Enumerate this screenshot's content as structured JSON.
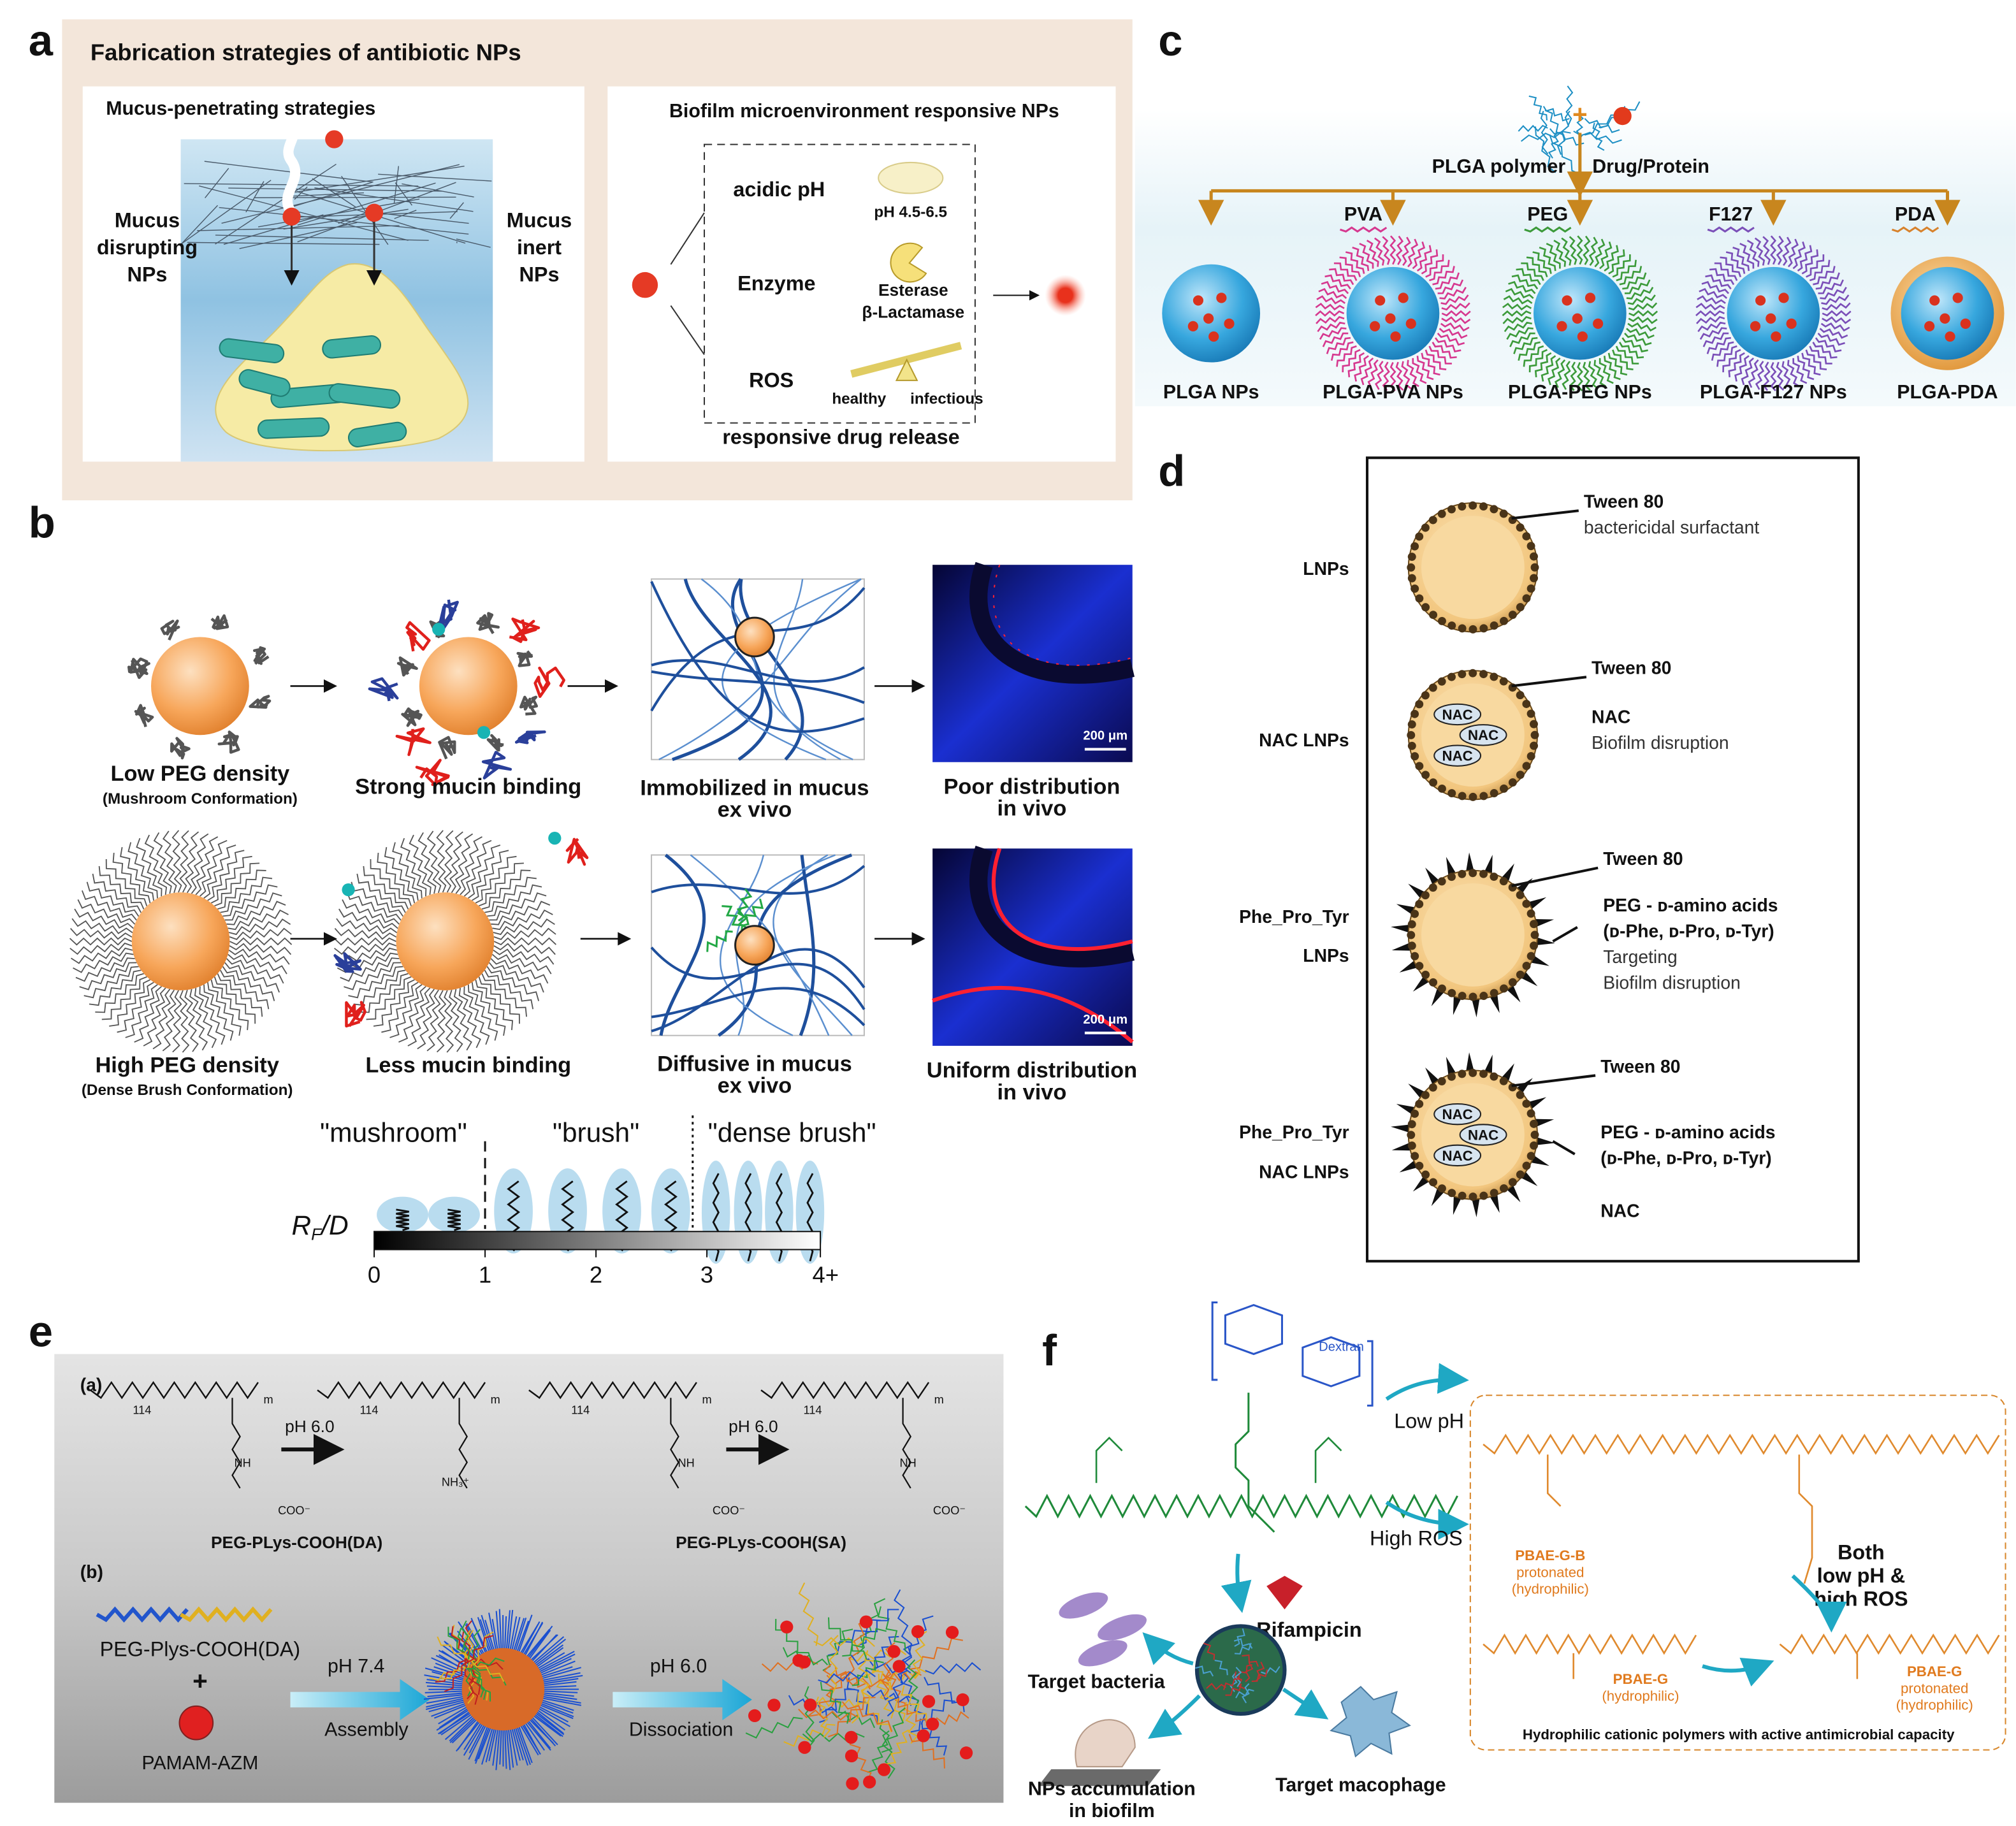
{
  "panel_a": {
    "letter": "a",
    "title": "Fabrication strategies of antibiotic NPs",
    "mucus": {
      "title": "Mucus-penetrating strategies",
      "disrupting": [
        "Mucus",
        "disrupting",
        "NPs"
      ],
      "inert": [
        "Mucus",
        "inert",
        "NPs"
      ]
    },
    "biofilm": {
      "title": "Biofilm microenvironment responsive NPs",
      "acidic": "acidic pH",
      "ph_range": "pH 4.5-6.5",
      "enzyme": "Enzyme",
      "enzymes": [
        "Esterase",
        "β-Lactamase"
      ],
      "ros": "ROS",
      "healthy": "healthy",
      "infectious": "infectious",
      "release": "responsive drug release"
    }
  },
  "panel_b": {
    "letter": "b",
    "row1": [
      [
        "Low PEG density",
        "(Mushroom Conformation)"
      ],
      [
        "Strong mucin binding"
      ],
      [
        "Immobilized in mucus",
        "ex vivo"
      ],
      [
        "Poor distribution",
        "in vivo"
      ]
    ],
    "row2": [
      [
        "High PEG density",
        "(Dense Brush Conformation)"
      ],
      [
        "Less mucin binding"
      ],
      [
        "Diffusive in mucus",
        "ex vivo"
      ],
      [
        "Uniform distribution",
        "in vivo"
      ]
    ],
    "scale_bar": "200 μm",
    "regimes": [
      "\"mushroom\"",
      "\"brush\"",
      "\"dense brush\""
    ],
    "axis_label": [
      "R",
      "F",
      "/D"
    ],
    "axis_ticks": [
      "0",
      "1",
      "2",
      "3",
      "4+"
    ]
  },
  "panel_c": {
    "letter": "c",
    "plus": "+",
    "inputs": [
      "PLGA polymer",
      "Drug/Protein"
    ],
    "coatings": [
      "PVA",
      "PEG",
      "F127",
      "PDA"
    ],
    "products": [
      "PLGA  NPs",
      "PLGA-PVA NPs",
      "PLGA-PEG NPs",
      "PLGA-F127 NPs",
      "PLGA-PDA"
    ]
  },
  "panel_d": {
    "letter": "d",
    "core_label": "NAC",
    "rows": [
      {
        "name": [
          "LNPs"
        ],
        "notes": [
          "Tween 80",
          "bactericidal surfactant"
        ]
      },
      {
        "name": [
          "NAC LNPs"
        ],
        "notes": [
          "Tween 80",
          "NAC",
          "Biofilm disruption"
        ]
      },
      {
        "name": [
          "Phe_Pro_Tyr",
          "LNPs"
        ],
        "notes": [
          "Tween 80",
          "PEG - ᴅ-amino acids",
          "(ᴅ-Phe, ᴅ-Pro, ᴅ-Tyr)",
          "Targeting",
          "Biofilm disruption"
        ]
      },
      {
        "name": [
          "Phe_Pro_Tyr",
          "NAC LNPs"
        ],
        "notes": [
          "Tween 80",
          "PEG - ᴅ-amino acids",
          "(ᴅ-Phe, ᴅ-Pro, ᴅ-Tyr)",
          "NAC"
        ]
      }
    ]
  },
  "panel_e": {
    "letter": "e",
    "part_a": {
      "label": "(a)",
      "step": "pH 6.0",
      "compounds": [
        "PEG-PLys-COOH(DA)",
        "PEG-PLys-COOH(SA)"
      ],
      "repeat": "114",
      "index": "m",
      "groups": [
        "NH",
        "COO⁻",
        "NH₃⁺"
      ]
    },
    "part_b": {
      "label": "(b)",
      "polymer": "PEG-Plys-COOH(DA)",
      "plus": "+",
      "drug": "PAMAM-AZM",
      "steps": [
        [
          "pH 7.4",
          "Assembly"
        ],
        [
          "pH 6.0",
          "Dissociation"
        ]
      ]
    }
  },
  "panel_f": {
    "letter": "f",
    "dextran": "Dextran",
    "conditions": [
      "Low pH",
      "High ROS"
    ],
    "drug": "Rifampicin",
    "targets": [
      "Target bacteria",
      "Target macophage"
    ],
    "accumulation": [
      "NPs accumulation",
      "in biofilm"
    ],
    "box": {
      "pbae_gb": [
        "PBAE-G-B",
        "protonated",
        "(hydrophilic)"
      ],
      "both": [
        "Both",
        "low pH &",
        "high ROS"
      ],
      "pbae_g": [
        "PBAE-G",
        "(hydrophilic)"
      ],
      "pbae_g_protonated": [
        "PBAE-G",
        "protonated",
        "(hydrophilic)"
      ],
      "caption": "Hydrophilic cationic polymers with active antimicrobial capacity"
    }
  }
}
